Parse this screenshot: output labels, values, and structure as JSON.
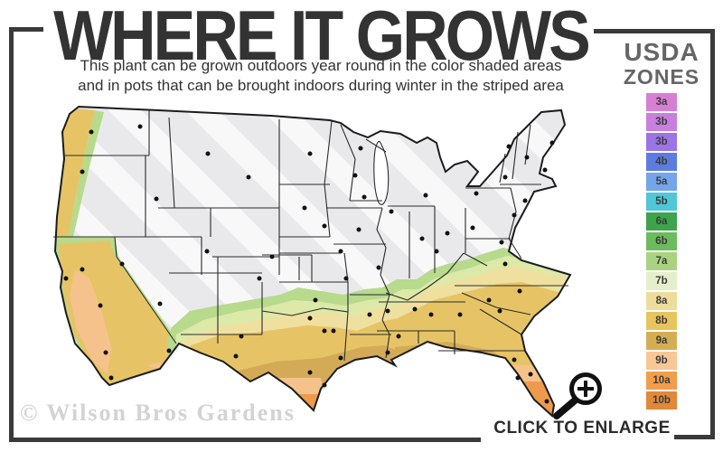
{
  "header": {
    "title": "WHERE IT GROWS",
    "subtitle_line1": "This plant can be grown outdoors year round in the color shaded areas",
    "subtitle_line2": "and in pots that can be brought indoors during winter in the striped area"
  },
  "legend": {
    "title_line1": "USDA",
    "title_line2": "ZONES",
    "zones": [
      {
        "label": "3a",
        "color": "#d77fd3"
      },
      {
        "label": "3b",
        "color": "#c97fdd"
      },
      {
        "label": "3b",
        "color": "#9b74e6"
      },
      {
        "label": "4b",
        "color": "#5c7ce0"
      },
      {
        "label": "5a",
        "color": "#74a4ea"
      },
      {
        "label": "5b",
        "color": "#4fc7d6"
      },
      {
        "label": "6a",
        "color": "#3da44c"
      },
      {
        "label": "6b",
        "color": "#6cbb5c"
      },
      {
        "label": "7a",
        "color": "#a9d380"
      },
      {
        "label": "7b",
        "color": "#e6efcb"
      },
      {
        "label": "8a",
        "color": "#eedd9a"
      },
      {
        "label": "8b",
        "color": "#e8c45c"
      },
      {
        "label": "9a",
        "color": "#d5ae53"
      },
      {
        "label": "9b",
        "color": "#f7c795"
      },
      {
        "label": "10a",
        "color": "#f19d4b"
      },
      {
        "label": "10b",
        "color": "#e1883a"
      }
    ]
  },
  "map": {
    "watermark": "© Wilson Bros Gardens",
    "zone_fills": {
      "gray": "#e9e9ec",
      "stripe": "#f8f8f9",
      "green": "#b7da8c",
      "pale_green": "#dcE9a8",
      "pale_yellow": "#efe0a0",
      "gold": "#e6c466",
      "tan": "#d3ab57",
      "peach": "#f6c28c",
      "orange": "#ee9a4c"
    }
  },
  "enlarge": {
    "label": "CLICK TO ENLARGE",
    "icon": "magnifier-plus-icon"
  }
}
